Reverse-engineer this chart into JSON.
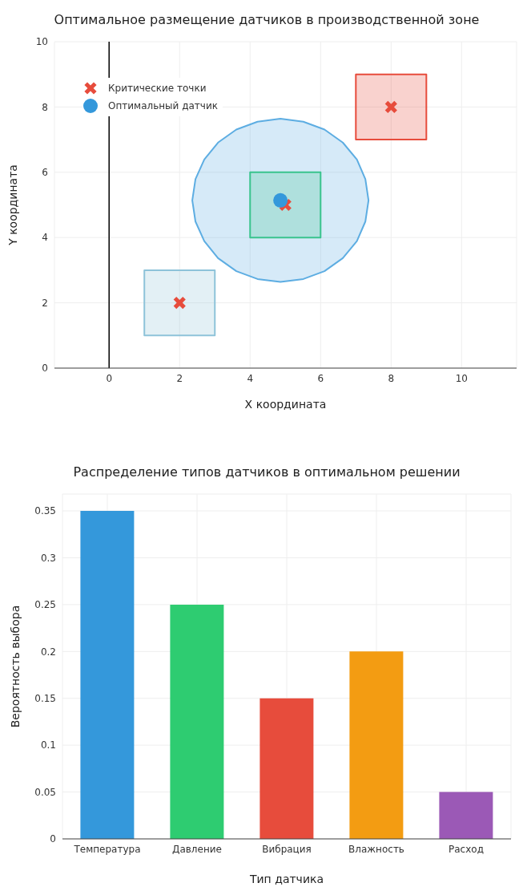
{
  "chart_data": [
    {
      "type": "scatter",
      "title": "Оптимальное размещение датчиков в производственной зоне",
      "xlabel": "X координата",
      "ylabel": "Y координата",
      "xlim": [
        -1.55,
        11.56
      ],
      "ylim": [
        0,
        10
      ],
      "xticks": [
        0,
        2,
        4,
        6,
        8,
        10
      ],
      "yticks": [
        0,
        2,
        4,
        6,
        8,
        10
      ],
      "grid": true,
      "legend": "top left",
      "ref_lines": [
        {
          "axis": "x",
          "value": 0,
          "color": "#000000"
        }
      ],
      "series": [
        {
          "type": "area",
          "color": "#8ec3d9",
          "x": [
            1,
            3,
            3,
            1,
            1
          ],
          "values": [
            1,
            1,
            3,
            3,
            1
          ]
        },
        {
          "type": "area",
          "color": "#2ecc71",
          "x": [
            4,
            6,
            6,
            4,
            4
          ],
          "values": [
            4,
            4,
            6,
            6,
            4
          ]
        },
        {
          "type": "area",
          "color": "#e74c3c",
          "x": [
            7,
            9,
            9,
            7,
            7
          ],
          "values": [
            7,
            7,
            9,
            9,
            7
          ]
        },
        {
          "type": "area",
          "color": "#5dade2",
          "x": [
            7.36,
            7.27,
            7.03,
            6.63,
            6.11,
            5.51,
            4.86,
            4.21,
            3.61,
            3.09,
            2.7,
            2.45,
            2.36,
            2.45,
            2.7,
            3.09,
            3.61,
            4.21,
            4.86,
            5.51,
            6.11,
            6.63,
            7.03,
            7.27,
            7.36
          ],
          "values": [
            5.14,
            5.79,
            6.39,
            6.91,
            7.31,
            7.55,
            7.64,
            7.55,
            7.31,
            6.91,
            6.39,
            5.79,
            5.14,
            4.49,
            3.89,
            3.37,
            2.97,
            2.73,
            2.64,
            2.73,
            2.97,
            3.37,
            3.89,
            4.49,
            5.14
          ]
        },
        {
          "type": "scatter",
          "name": "Критические точки",
          "color": "#e74c3c",
          "marker": "cross",
          "x": [
            2,
            5,
            8
          ],
          "values": [
            2,
            5,
            8
          ]
        },
        {
          "type": "scatter",
          "name": "Оптимальный датчик",
          "color": "#3498db",
          "marker": "circle",
          "x": [
            4.86
          ],
          "values": [
            5.14
          ]
        }
      ]
    },
    {
      "type": "bar",
      "title": "Распределение типов датчиков в оптимальном решении",
      "xlabel": "Тип датчика",
      "ylabel": "Вероятность выбора",
      "categories": [
        "Температура",
        "Давление",
        "Вибрация",
        "Влажность",
        "Расход"
      ],
      "values": [
        0.35,
        0.25,
        0.15,
        0.2,
        0.05
      ],
      "colors": [
        "#3498db",
        "#2ecc71",
        "#e74c3c",
        "#f39c12",
        "#9b59b6"
      ],
      "ylim": [
        0,
        0.368
      ],
      "yticks": [
        0,
        0.05,
        0.1,
        0.15,
        0.2,
        0.25,
        0.3,
        0.35
      ],
      "grid": true
    }
  ]
}
